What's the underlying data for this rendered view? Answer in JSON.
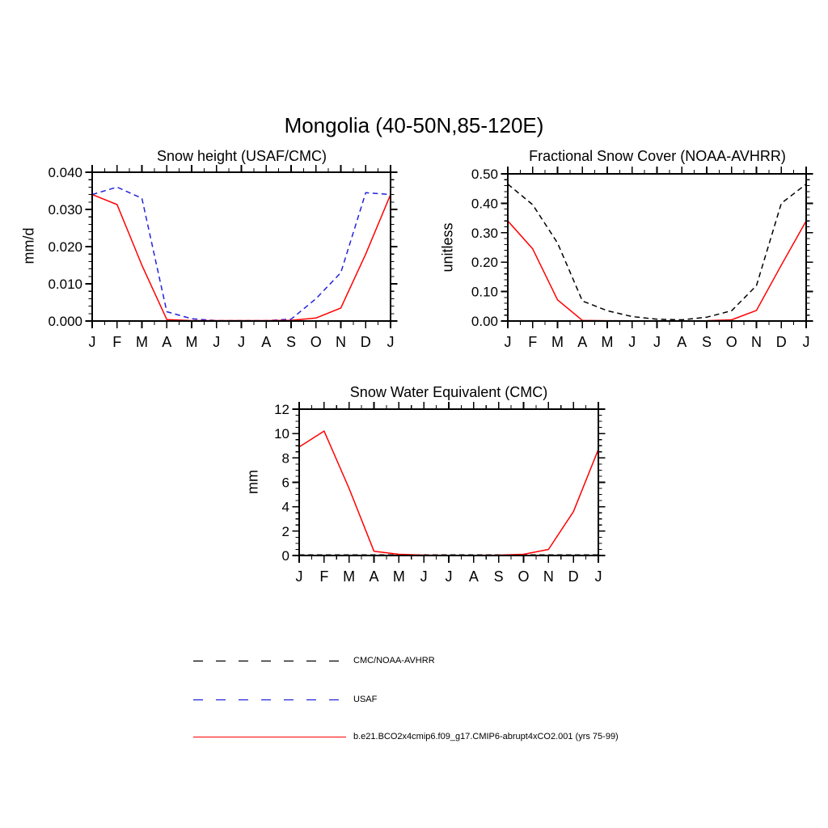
{
  "page": {
    "title": "Mongolia (40-50N,85-120E)"
  },
  "chart_data": [
    {
      "type": "line",
      "title": "Snow height (USAF/CMC)",
      "xlabel": "",
      "ylabel": "mm/d",
      "categories": [
        "J",
        "F",
        "M",
        "A",
        "M",
        "J",
        "J",
        "A",
        "S",
        "O",
        "N",
        "D",
        "J"
      ],
      "ylim": [
        0,
        0.04
      ],
      "ytick_values": [
        0,
        0.01,
        0.02,
        0.03,
        0.04
      ],
      "ytick_labels": [
        "0.000",
        "0.010",
        "0.020",
        "0.030",
        "0.040"
      ],
      "y_minor_step": 0.002,
      "grid": false,
      "legend_position": "none",
      "series": [
        {
          "name": "USAF",
          "color": "#2222dd",
          "dash": "dashed",
          "values": [
            0.034,
            0.036,
            0.033,
            0.0025,
            0.0006,
            0.0001,
            0.0001,
            0.0001,
            0.0005,
            0.006,
            0.013,
            0.0345,
            0.034
          ]
        },
        {
          "name": "b.e21.BCO2x4cmip6.f09_g17.CMIP6-abrupt4xCO2.001 (yrs 75-99)",
          "color": "#ff0000",
          "dash": "solid",
          "values": [
            0.034,
            0.0313,
            0.015,
            0.0004,
            0.0001,
            0.0001,
            0.0001,
            0.0001,
            0.0002,
            0.0008,
            0.0035,
            0.018,
            0.034
          ]
        }
      ]
    },
    {
      "type": "line",
      "title": "Fractional Snow Cover (NOAA-AVHRR)",
      "xlabel": "",
      "ylabel": "unitless",
      "categories": [
        "J",
        "F",
        "M",
        "A",
        "M",
        "J",
        "J",
        "A",
        "S",
        "O",
        "N",
        "D",
        "J"
      ],
      "ylim": [
        0,
        0.5
      ],
      "ytick_values": [
        0,
        0.1,
        0.2,
        0.3,
        0.4,
        0.5
      ],
      "ytick_labels": [
        "0.00",
        "0.10",
        "0.20",
        "0.30",
        "0.40",
        "0.50"
      ],
      "y_minor_step": 0.02,
      "grid": false,
      "legend_position": "none",
      "series": [
        {
          "name": "CMC/NOAA-AVHRR",
          "color": "#000000",
          "dash": "dashed",
          "values": [
            0.465,
            0.395,
            0.265,
            0.068,
            0.035,
            0.015,
            0.006,
            0.004,
            0.013,
            0.035,
            0.12,
            0.4,
            0.465
          ]
        },
        {
          "name": "b.e21.BCO2x4cmip6.f09_g17.CMIP6-abrupt4xCO2.001 (yrs 75-99)",
          "color": "#ff0000",
          "dash": "solid",
          "values": [
            0.34,
            0.245,
            0.072,
            0.002,
            0.001,
            0.0005,
            0.0005,
            0.0005,
            0.001,
            0.004,
            0.036,
            0.19,
            0.34
          ]
        }
      ]
    },
    {
      "type": "line",
      "title": "Snow Water Equivalent (CMC)",
      "xlabel": "",
      "ylabel": "mm",
      "categories": [
        "J",
        "F",
        "M",
        "A",
        "M",
        "J",
        "J",
        "A",
        "S",
        "O",
        "N",
        "D",
        "J"
      ],
      "ylim": [
        0,
        12
      ],
      "ytick_values": [
        0,
        2,
        4,
        6,
        8,
        10,
        12
      ],
      "ytick_labels": [
        "0",
        "2",
        "4",
        "6",
        "8",
        "10",
        "12"
      ],
      "y_minor_step": 0.5,
      "grid": false,
      "legend_position": "none",
      "series": [
        {
          "name": "CMC/NOAA-AVHRR",
          "color": "#000000",
          "dash": "dashed",
          "values": [
            0.05,
            0.05,
            0.05,
            0.05,
            0.05,
            0.05,
            0.05,
            0.05,
            0.05,
            0.05,
            0.05,
            0.05,
            0.05
          ]
        },
        {
          "name": "b.e21.BCO2x4cmip6.f09_g17.CMIP6-abrupt4xCO2.001 (yrs 75-99)",
          "color": "#ff0000",
          "dash": "solid",
          "values": [
            8.9,
            10.2,
            5.5,
            0.35,
            0.1,
            0.03,
            0.02,
            0.02,
            0.03,
            0.1,
            0.5,
            3.6,
            8.7
          ]
        }
      ]
    }
  ],
  "legend": {
    "entries": [
      {
        "label": "CMC/NOAA-AVHRR",
        "color": "#000000",
        "dash": "dashed"
      },
      {
        "label": "USAF",
        "color": "#2222dd",
        "dash": "dashed"
      },
      {
        "label": "b.e21.BCO2x4cmip6.f09_g17.CMIP6-abrupt4xCO2.001 (yrs 75-99)",
        "color": "#ff0000",
        "dash": "solid"
      }
    ]
  }
}
